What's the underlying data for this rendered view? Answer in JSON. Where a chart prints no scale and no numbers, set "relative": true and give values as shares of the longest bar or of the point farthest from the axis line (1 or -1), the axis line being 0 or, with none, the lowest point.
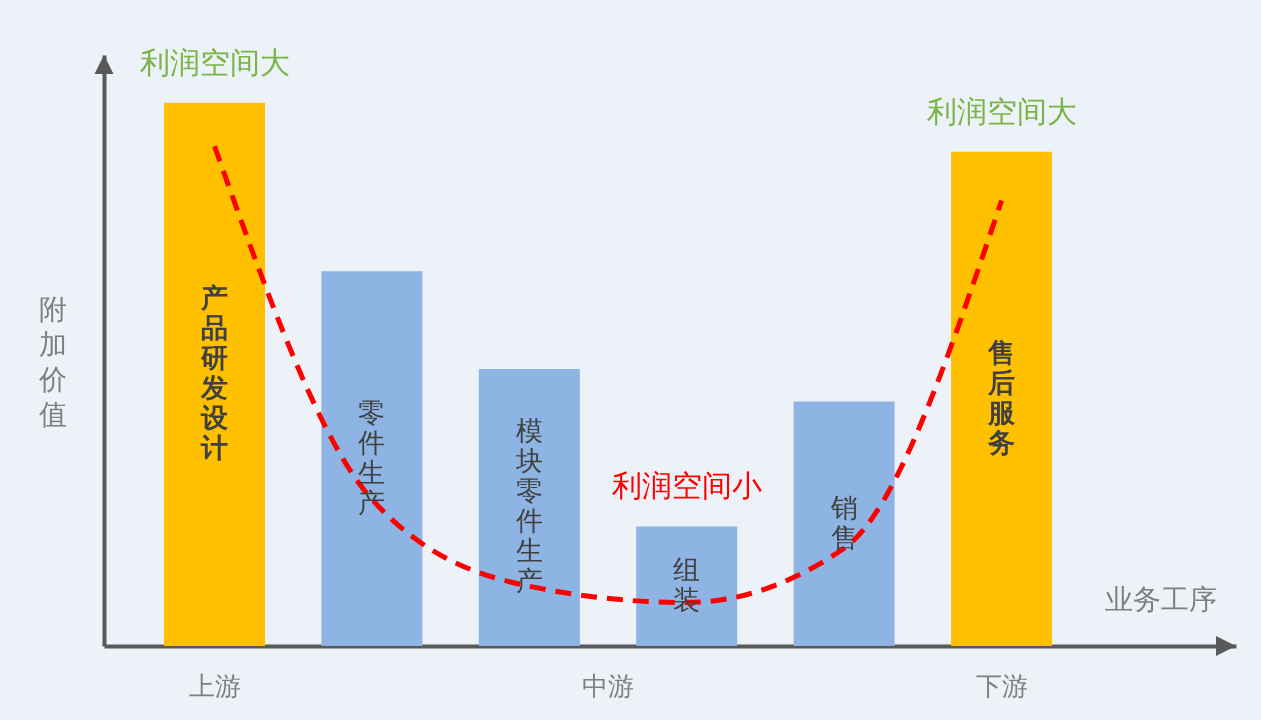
{
  "chart_data": {
    "type": "bar",
    "relative": true,
    "tick_labels": false,
    "categories": [
      "产品研发设计",
      "零件生产",
      "模块零件生产",
      "组装",
      "销售",
      "售后服务"
    ],
    "series": [
      {
        "colors": [
          "#ffc000",
          "#8eb4e3",
          "#8eb4e3",
          "#8eb4e3",
          "#8eb4e3",
          "#ffc000"
        ],
        "values": [
          1,
          0.69,
          0.51,
          0.22,
          0.45,
          0.91
        ]
      },
      {
        "type": "line",
        "color": "#ff0000",
        "line_style": "dashed",
        "values": [
          0.92,
          0.27,
          0.11,
          0.08,
          0.18,
          0.82
        ]
      }
    ],
    "xlabel": "业务工序",
    "ylabel": "附加价值",
    "annotations": [
      {
        "text": "利润空间大",
        "x": "产品研发设计",
        "y": 1
      },
      {
        "text": "利润空间大",
        "x": "售后服务",
        "y": 0.91
      },
      {
        "text": "利润空间小",
        "x": "组装",
        "y": 0.22
      },
      "上游",
      "中游",
      "下游"
    ]
  }
}
